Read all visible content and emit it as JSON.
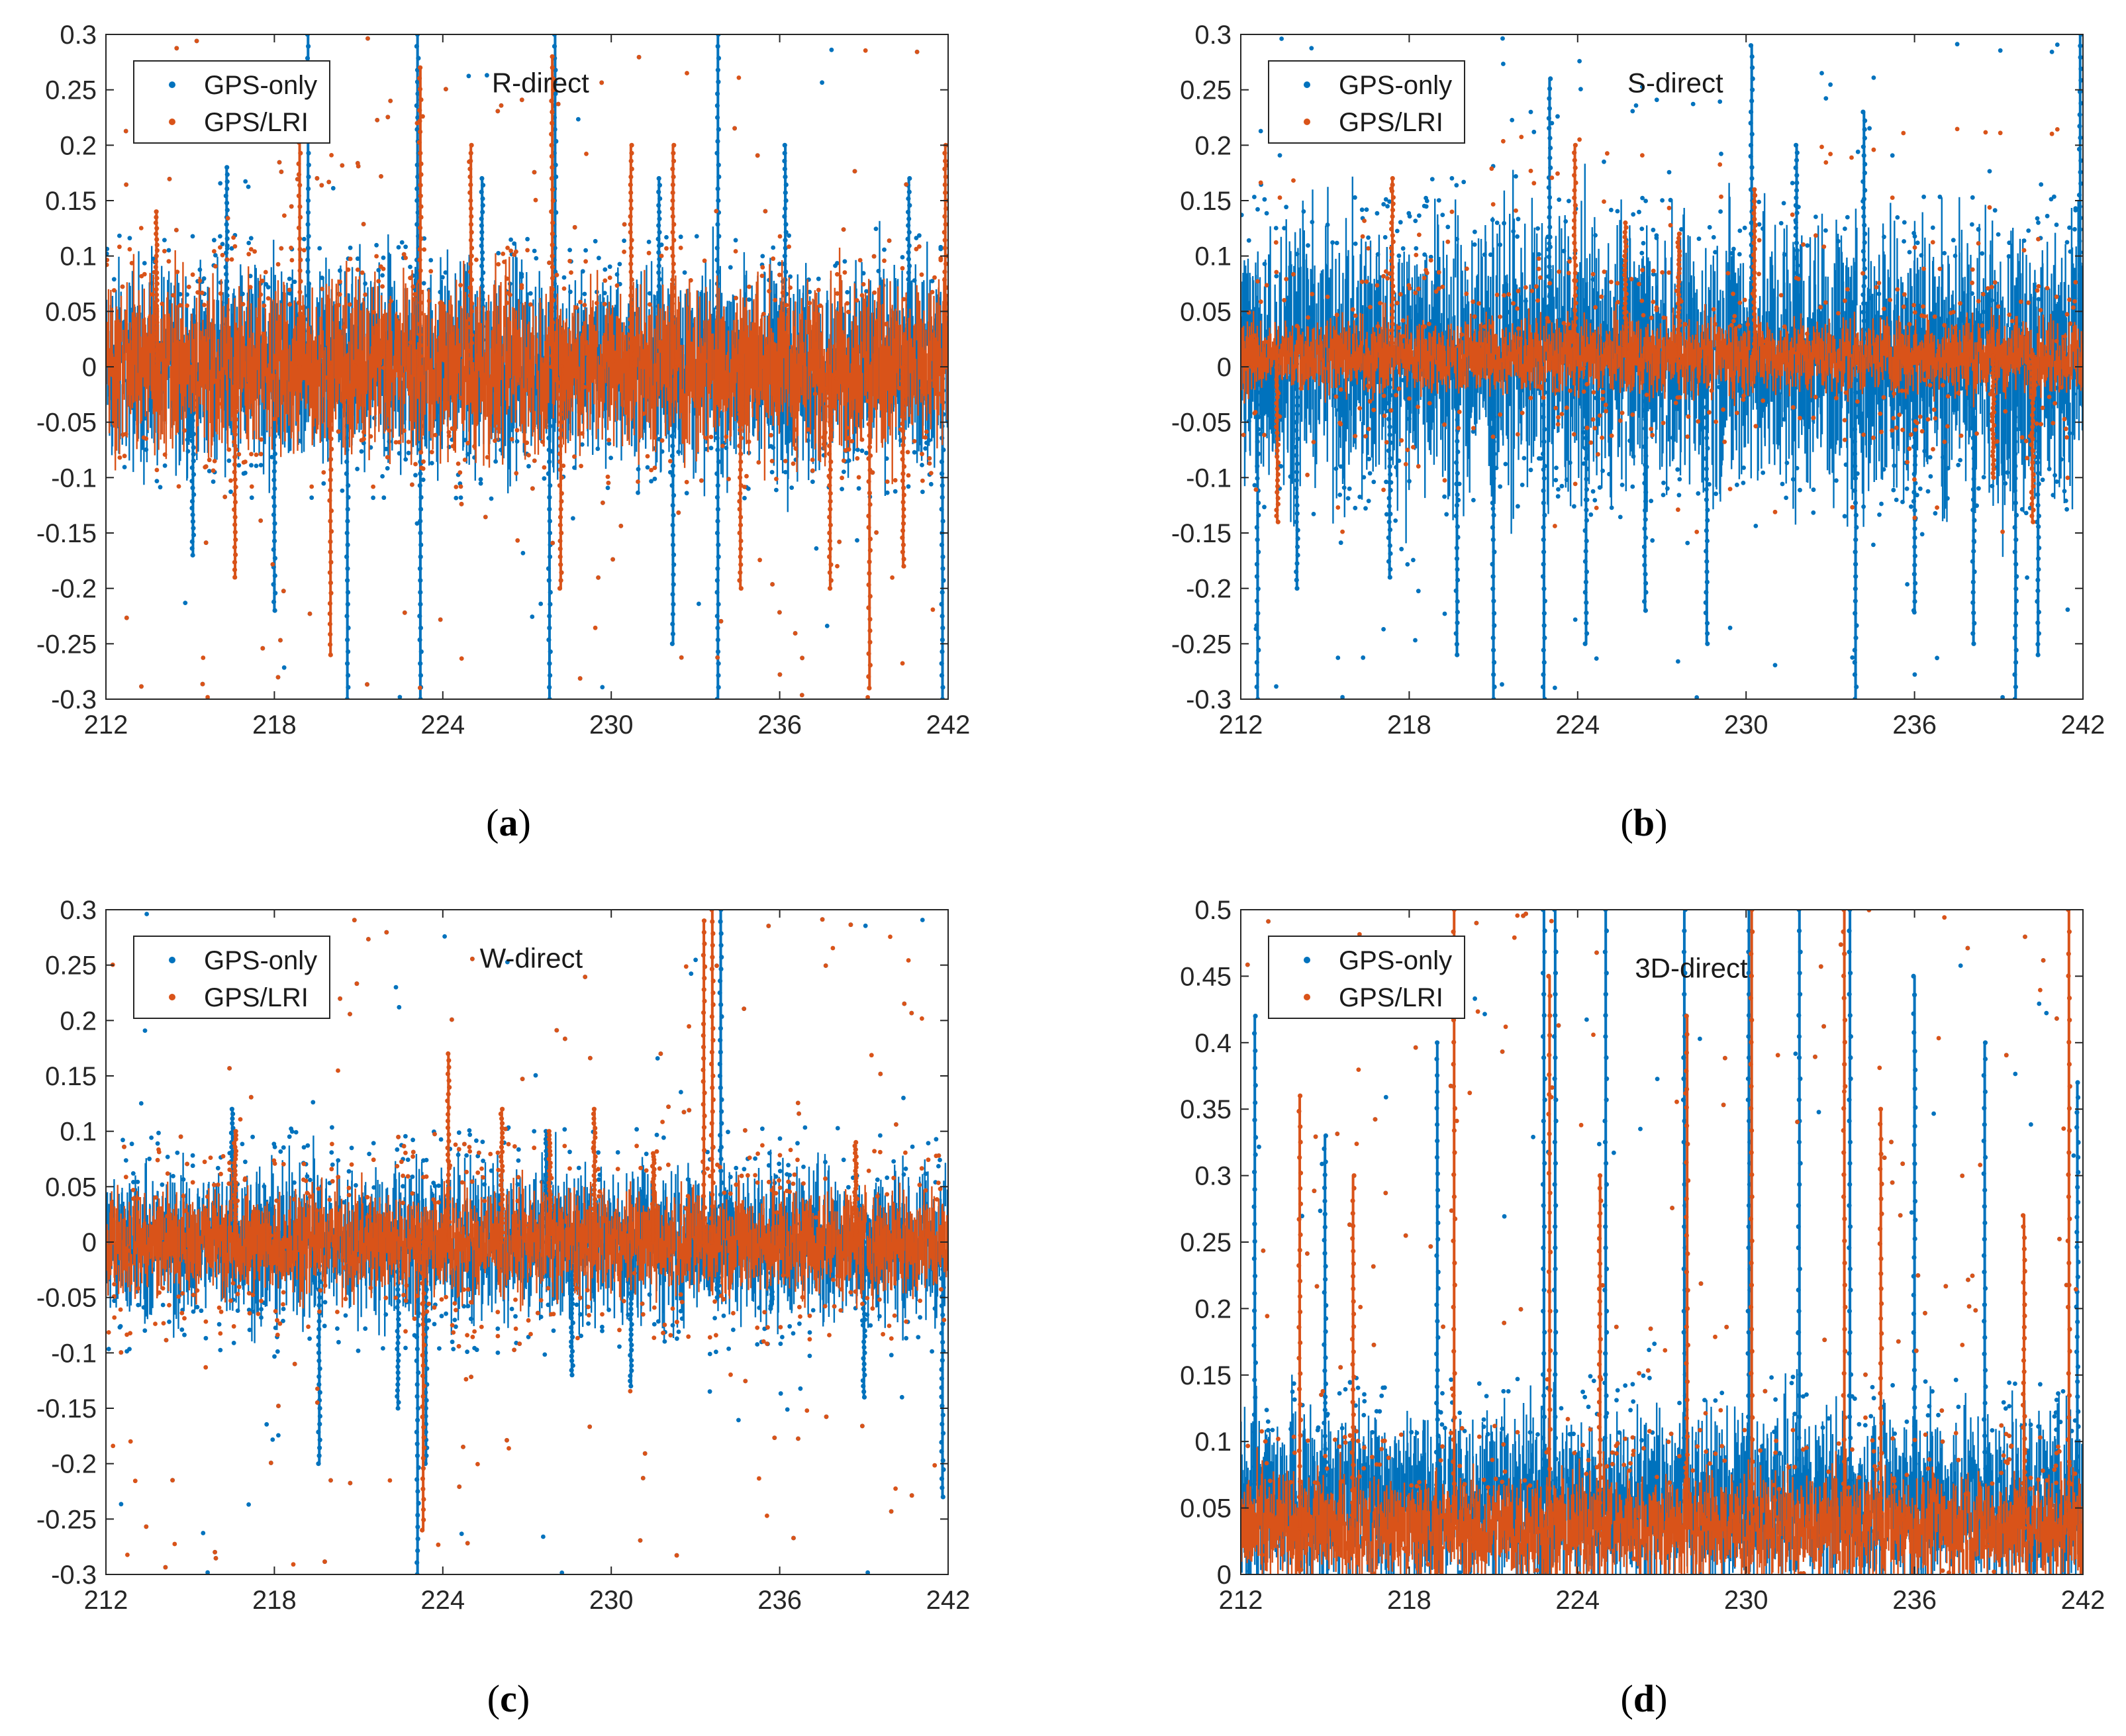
{
  "colors": {
    "gps_only": "#0072BD",
    "gps_lri": "#D95319",
    "axis": "#262626",
    "legend_border": "#262626"
  },
  "chart_data": [
    {
      "panel": "a",
      "caption_open": "(",
      "caption_letter": "a",
      "caption_close": ")",
      "type": "scatter",
      "title": "R-direct",
      "xlim": [
        212,
        242
      ],
      "ylim": [
        -0.3,
        0.3
      ],
      "xticks": [
        212,
        218,
        224,
        230,
        236,
        242
      ],
      "yticks": [
        -0.3,
        -0.25,
        -0.2,
        -0.15,
        -0.1,
        -0.05,
        0,
        0.05,
        0.1,
        0.15,
        0.2,
        0.25,
        0.3
      ],
      "ytick_labels": [
        "-0.3",
        "-0.25",
        "-0.2",
        "-0.15",
        "-0.1",
        "-0.05",
        "0",
        "0.05",
        "0.1",
        "0.15",
        "0.2",
        "0.25",
        "0.3"
      ],
      "legend": [
        "GPS-only",
        "GPS/LRI"
      ],
      "series": [
        {
          "name": "GPS-only",
          "center": 0,
          "core_halfwidth": 0.065,
          "outlier_range": [
            -0.3,
            0.3
          ],
          "spikes": [
            [
              215.1,
              -0.17
            ],
            [
              216.3,
              0.18
            ],
            [
              218.0,
              -0.22
            ],
            [
              219.2,
              0.3
            ],
            [
              220.6,
              -0.3
            ],
            [
              223.1,
              0.3
            ],
            [
              223.2,
              -0.3
            ],
            [
              225.4,
              0.17
            ],
            [
              227.8,
              -0.3
            ],
            [
              228.0,
              0.3
            ],
            [
              231.7,
              0.17
            ],
            [
              232.2,
              -0.25
            ],
            [
              233.8,
              0.3
            ],
            [
              233.8,
              -0.3
            ],
            [
              236.2,
              0.2
            ],
            [
              240.6,
              0.17
            ],
            [
              241.8,
              -0.3
            ]
          ]
        },
        {
          "name": "GPS/LRI",
          "center": 0,
          "core_halfwidth": 0.055,
          "outlier_range": [
            -0.3,
            0.3
          ],
          "spikes": [
            [
              213.8,
              0.14
            ],
            [
              216.6,
              -0.19
            ],
            [
              218.9,
              0.27
            ],
            [
              220.0,
              -0.26
            ],
            [
              223.2,
              0.27
            ],
            [
              225.0,
              0.2
            ],
            [
              227.9,
              0.28
            ],
            [
              228.2,
              -0.2
            ],
            [
              230.7,
              0.2
            ],
            [
              232.2,
              0.2
            ],
            [
              234.6,
              -0.2
            ],
            [
              237.8,
              -0.2
            ],
            [
              239.2,
              -0.29
            ],
            [
              240.4,
              -0.18
            ],
            [
              241.9,
              0.2
            ]
          ]
        }
      ]
    },
    {
      "panel": "b",
      "caption_open": "(",
      "caption_letter": "b",
      "caption_close": ")",
      "type": "scatter",
      "title": "S-direct",
      "xlim": [
        212,
        242
      ],
      "ylim": [
        -0.3,
        0.3
      ],
      "xticks": [
        212,
        218,
        224,
        230,
        236,
        242
      ],
      "yticks": [
        -0.3,
        -0.25,
        -0.2,
        -0.15,
        -0.1,
        -0.05,
        0,
        0.05,
        0.1,
        0.15,
        0.2,
        0.25,
        0.3
      ],
      "ytick_labels": [
        "-0.3",
        "-0.25",
        "-0.2",
        "-0.15",
        "-0.1",
        "-0.05",
        "0",
        "0.05",
        "0.1",
        "0.15",
        "0.2",
        "0.25",
        "0.3"
      ],
      "legend": [
        "GPS-only",
        "GPS/LRI"
      ],
      "series": [
        {
          "name": "GPS-only",
          "center": 0.01,
          "core_halfwidth": 0.09,
          "outlier_range": [
            -0.3,
            0.3
          ],
          "spikes": [
            [
              212.6,
              -0.3
            ],
            [
              214.0,
              -0.2
            ],
            [
              217.3,
              -0.19
            ],
            [
              219.7,
              -0.26
            ],
            [
              221.0,
              -0.3
            ],
            [
              222.8,
              -0.3
            ],
            [
              223.0,
              0.26
            ],
            [
              224.3,
              -0.25
            ],
            [
              226.4,
              -0.22
            ],
            [
              228.6,
              -0.25
            ],
            [
              230.2,
              0.29
            ],
            [
              231.8,
              0.2
            ],
            [
              233.9,
              -0.3
            ],
            [
              234.2,
              0.23
            ],
            [
              236.0,
              -0.22
            ],
            [
              238.1,
              -0.25
            ],
            [
              239.6,
              -0.3
            ],
            [
              240.4,
              -0.26
            ],
            [
              241.9,
              0.3
            ]
          ]
        },
        {
          "name": "GPS/LRI",
          "center": 0.01,
          "core_halfwidth": 0.025,
          "outlier_range": [
            -0.15,
            0.22
          ],
          "spikes": [
            [
              213.3,
              -0.14
            ],
            [
              217.4,
              0.17
            ],
            [
              223.9,
              0.2
            ],
            [
              225.7,
              0.13
            ],
            [
              227.6,
              0.12
            ],
            [
              230.3,
              0.16
            ],
            [
              238.8,
              -0.1
            ],
            [
              240.2,
              -0.14
            ]
          ]
        }
      ]
    },
    {
      "panel": "c",
      "caption_open": "(",
      "caption_letter": "c",
      "caption_close": ")",
      "type": "scatter",
      "title": "W-direct",
      "xlim": [
        212,
        242
      ],
      "ylim": [
        -0.3,
        0.3
      ],
      "xticks": [
        212,
        218,
        224,
        230,
        236,
        242
      ],
      "yticks": [
        -0.3,
        -0.25,
        -0.2,
        -0.15,
        -0.1,
        -0.05,
        0,
        0.05,
        0.1,
        0.15,
        0.2,
        0.25,
        0.3
      ],
      "ytick_labels": [
        "-0.3",
        "-0.25",
        "-0.2",
        "-0.15",
        "-0.1",
        "-0.05",
        "0",
        "0.05",
        "0.1",
        "0.15",
        "0.2",
        "0.25",
        "0.3"
      ],
      "legend": [
        "GPS-only",
        "GPS/LRI"
      ],
      "series": [
        {
          "name": "GPS-only",
          "center": 0,
          "core_halfwidth": 0.05,
          "outlier_range": [
            -0.3,
            0.3
          ],
          "spikes": [
            [
              216.5,
              0.12
            ],
            [
              219.6,
              -0.2
            ],
            [
              222.4,
              -0.15
            ],
            [
              223.1,
              -0.3
            ],
            [
              223.4,
              -0.2
            ],
            [
              227.7,
              0.1
            ],
            [
              228.6,
              -0.12
            ],
            [
              230.7,
              -0.13
            ],
            [
              233.9,
              0.3
            ],
            [
              233.8,
              -0.05
            ],
            [
              235.7,
              -0.06
            ],
            [
              239.0,
              -0.14
            ],
            [
              241.8,
              -0.23
            ]
          ]
        },
        {
          "name": "GPS/LRI",
          "center": 0,
          "core_halfwidth": 0.035,
          "outlier_range": [
            -0.3,
            0.3
          ],
          "spikes": [
            [
              216.6,
              0.1
            ],
            [
              223.3,
              -0.26
            ],
            [
              224.2,
              0.17
            ],
            [
              226.1,
              0.12
            ],
            [
              227.8,
              0.1
            ],
            [
              229.4,
              0.12
            ],
            [
              233.6,
              0.3
            ],
            [
              233.3,
              0.29
            ],
            [
              231.5,
              0.08
            ],
            [
              238.7,
              0.09
            ]
          ]
        }
      ]
    },
    {
      "panel": "d",
      "caption_open": "(",
      "caption_letter": "d",
      "caption_close": ")",
      "type": "scatter",
      "title": "3D-direct",
      "xlim": [
        212,
        242
      ],
      "ylim": [
        0,
        0.5
      ],
      "xticks": [
        212,
        218,
        224,
        230,
        236,
        242
      ],
      "yticks": [
        0,
        0.05,
        0.1,
        0.15,
        0.2,
        0.25,
        0.3,
        0.35,
        0.4,
        0.45,
        0.5
      ],
      "ytick_labels": [
        "0",
        "0.05",
        "0.1",
        "0.15",
        "0.2",
        "0.25",
        "0.3",
        "0.35",
        "0.4",
        "0.45",
        "0.5"
      ],
      "legend": [
        "GPS-only",
        "GPS/LRI"
      ],
      "series": [
        {
          "name": "GPS-only",
          "center": 0.055,
          "core_halfwidth": 0.05,
          "outlier_range": [
            0,
            0.5
          ],
          "spikes": [
            [
              212.5,
              0.42
            ],
            [
              215.0,
              0.33
            ],
            [
              219.0,
              0.4
            ],
            [
              222.8,
              0.5
            ],
            [
              223.2,
              0.5
            ],
            [
              225.0,
              0.5
            ],
            [
              227.8,
              0.5
            ],
            [
              230.1,
              0.5
            ],
            [
              231.9,
              0.5
            ],
            [
              233.7,
              0.5
            ],
            [
              236.0,
              0.45
            ],
            [
              238.5,
              0.4
            ],
            [
              241.8,
              0.37
            ]
          ]
        },
        {
          "name": "GPS/LRI",
          "center": 0.035,
          "core_halfwidth": 0.03,
          "outlier_range": [
            0,
            0.5
          ],
          "spikes": [
            [
              214.1,
              0.36
            ],
            [
              216.0,
              0.3
            ],
            [
              219.6,
              0.5
            ],
            [
              223.0,
              0.45
            ],
            [
              224.8,
              0.3
            ],
            [
              227.9,
              0.42
            ],
            [
              230.2,
              0.5
            ],
            [
              233.5,
              0.5
            ],
            [
              234.8,
              0.35
            ],
            [
              239.9,
              0.27
            ],
            [
              241.5,
              0.5
            ]
          ]
        }
      ]
    }
  ]
}
